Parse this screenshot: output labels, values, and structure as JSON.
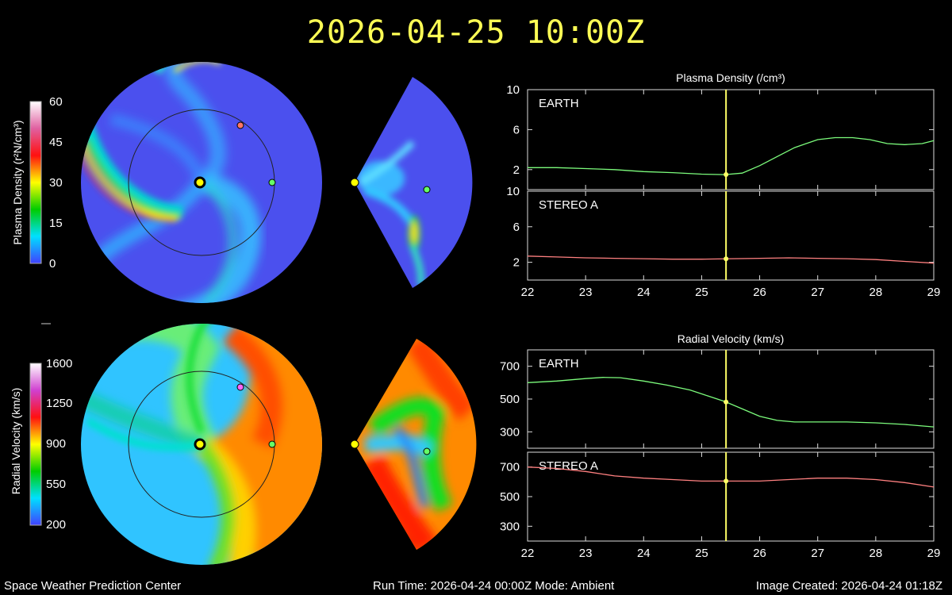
{
  "header": {
    "datetime": "2026-04-25 10:00Z"
  },
  "footer": {
    "center": "Space Weather Prediction Center",
    "run_info": "Run Time: 2026-04-24 00:00Z  Mode: Ambient",
    "created": "Image Created: 2026-04-24 01:18Z"
  },
  "density_colorbar": {
    "label": "Plasma Density (r²N/cm³)",
    "ticks": [
      "60",
      "45",
      "30",
      "15",
      "0"
    ],
    "stops": [
      "#ffffff",
      "#e060a0",
      "#ff1010",
      "#ffff00",
      "#00cc00",
      "#00e0ff",
      "#4040ff"
    ]
  },
  "velocity_colorbar": {
    "label": "Radial Velocity (km/s)",
    "ticks": [
      "1600",
      "1250",
      "900",
      "550",
      "200"
    ],
    "stops": [
      "#ffffff",
      "#d040d0",
      "#ff1010",
      "#ffff00",
      "#00cc00",
      "#00e0ff",
      "#4040ff"
    ]
  },
  "map_markers": {
    "sun": "#ffff00",
    "earth": "#66ff66",
    "stereo_a_density": "#ff7766",
    "stereo_a_velocity": "#ff66ff"
  },
  "chart_data": [
    {
      "type": "line",
      "title": "Plasma Density (/cm³)",
      "panel_label": "EARTH",
      "x": [
        22,
        22.5,
        23,
        23.5,
        24,
        24.5,
        25,
        25.4,
        25.7,
        26,
        26.3,
        26.6,
        27,
        27.3,
        27.6,
        27.9,
        28.2,
        28.5,
        28.8,
        29
      ],
      "y": [
        2.2,
        2.2,
        2.1,
        2.0,
        1.8,
        1.7,
        1.55,
        1.5,
        1.65,
        2.4,
        3.3,
        4.2,
        5.0,
        5.2,
        5.2,
        5.0,
        4.6,
        4.5,
        4.6,
        4.9
      ],
      "ylim": [
        0,
        10
      ],
      "yticks": [
        2,
        6,
        10
      ],
      "xlim": [
        22,
        29
      ],
      "xticks": [
        22,
        23,
        24,
        25,
        26,
        27,
        28,
        29
      ],
      "color": "#7cfc7c",
      "marker_x": 25.42
    },
    {
      "type": "line",
      "panel_label": "STEREO A",
      "x": [
        22,
        22.5,
        23,
        23.5,
        24,
        24.5,
        25,
        25.5,
        26,
        26.5,
        27,
        27.5,
        28,
        28.5,
        29
      ],
      "y": [
        2.7,
        2.6,
        2.5,
        2.45,
        2.4,
        2.35,
        2.35,
        2.4,
        2.45,
        2.5,
        2.45,
        2.4,
        2.3,
        2.1,
        1.9
      ],
      "ylim": [
        0,
        10
      ],
      "yticks": [
        2,
        6,
        10
      ],
      "xlim": [
        22,
        29
      ],
      "xticks": [
        22,
        23,
        24,
        25,
        26,
        27,
        28,
        29
      ],
      "color": "#ff8080",
      "marker_x": 25.42
    },
    {
      "type": "line",
      "title": "Radial Velocity (km/s)",
      "panel_label": "EARTH",
      "x": [
        22,
        22.5,
        23,
        23.3,
        23.6,
        24,
        24.4,
        24.8,
        25.1,
        25.4,
        25.7,
        26,
        26.3,
        26.6,
        27,
        27.5,
        28,
        28.5,
        29
      ],
      "y": [
        600,
        610,
        625,
        632,
        630,
        610,
        585,
        555,
        520,
        485,
        440,
        395,
        370,
        360,
        360,
        360,
        355,
        345,
        330
      ],
      "ylim": [
        200,
        800
      ],
      "yticks": [
        300,
        500,
        700
      ],
      "xlim": [
        22,
        29
      ],
      "xticks": [
        22,
        23,
        24,
        25,
        26,
        27,
        28,
        29
      ],
      "color": "#7cfc7c",
      "marker_x": 25.42
    },
    {
      "type": "line",
      "panel_label": "STEREO A",
      "x": [
        22,
        22.5,
        23,
        23.5,
        24,
        24.5,
        25,
        25.5,
        26,
        26.5,
        27,
        27.5,
        28,
        28.5,
        29
      ],
      "y": [
        700,
        690,
        670,
        640,
        625,
        615,
        605,
        605,
        605,
        615,
        625,
        625,
        615,
        595,
        565
      ],
      "ylim": [
        200,
        800
      ],
      "yticks": [
        300,
        500,
        700
      ],
      "xlim": [
        22,
        29
      ],
      "xticks": [
        22,
        23,
        24,
        25,
        26,
        27,
        28,
        29
      ],
      "color": "#ff8080",
      "marker_x": 25.42
    }
  ]
}
